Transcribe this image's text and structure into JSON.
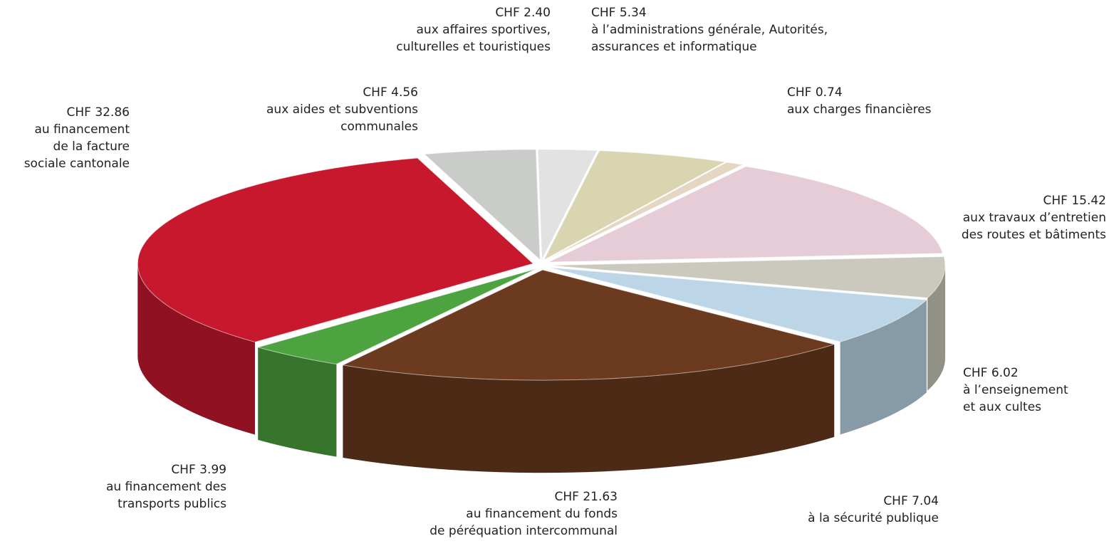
{
  "chart_data": {
    "type": "pie",
    "categories": [
      "aux aides et subventions\ncommunales",
      "aux affaires sportives,\nculturelles et touristiques",
      "à l’administrations générale, Autorités,\nassurances et informatique",
      "aux charges financières",
      "aux travaux d’entretien\ndes routes et bâtiments",
      "à l’enseignement\net aux cultes",
      "à la sécurité publique",
      "au financement du fonds\nde péréquation intercommunal",
      "au financement des\ntransports publics",
      "au financement\nde la facture\nsociale cantonale"
    ],
    "values": [
      4.56,
      2.4,
      5.34,
      0.74,
      15.42,
      6.02,
      7.04,
      21.63,
      3.99,
      32.86
    ],
    "value_labels": [
      "CHF 4.56",
      "CHF 2.40",
      "CHF 5.34",
      "CHF 0.74",
      "CHF 15.42",
      "CHF 6.02",
      "CHF 7.04",
      "CHF 21.63",
      "CHF 3.99",
      "CHF 32.86"
    ],
    "colors": [
      "#c9ccc8",
      "#e2e2e2",
      "#d8d5b0",
      "#e3d6c2",
      "#e5ccd6",
      "#cbc9bd",
      "#bcd6e8",
      "#6b3a1f",
      "#4da33f",
      "#c8182e"
    ]
  }
}
